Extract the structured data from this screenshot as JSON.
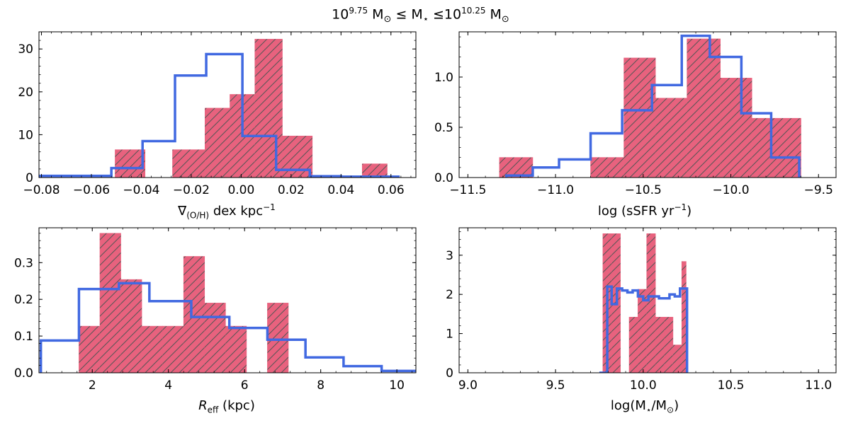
{
  "figure_title": "10^9.75 M⊙ ≤ M⋆ ≤10^10.25 M⊙",
  "title_parts": {
    "base1": "10",
    "exp1": "9.75",
    "mid": " M",
    "sun1": "⊙",
    "leq1": " ≤ M",
    "star": "⋆",
    "leq2": " ≤10",
    "exp2": "10.25",
    "tail": " M",
    "sun2": "⊙"
  },
  "colors": {
    "hist_fill": "#e8627e",
    "hist_edge": "#e8627e",
    "hatch": "#555555",
    "step": "#4169e1"
  },
  "chart_data": [
    {
      "type": "bar",
      "id": "gradient",
      "xlabel": "∇(O/H) dex kpc^−1",
      "xlabel_parts": {
        "main": "∇",
        "sub": "(O/H)",
        "rest": " dex kpc",
        "sup": "−1"
      },
      "xlim": [
        -0.081,
        0.07
      ],
      "ylim": [
        0,
        34
      ],
      "xticks": [
        -0.08,
        -0.06,
        -0.04,
        -0.02,
        0.0,
        0.02,
        0.04,
        0.06
      ],
      "xtick_labels": [
        "−0.08",
        "−0.06",
        "−0.04",
        "−0.02",
        "0.00",
        "0.02",
        "0.04",
        "0.06"
      ],
      "yticks": [
        0,
        10,
        20,
        30
      ],
      "ytick_labels": [
        "0",
        "10",
        "20",
        "30"
      ],
      "hist_edges": [
        -0.0505,
        -0.0385,
        -0.0275,
        -0.0145,
        -0.0045,
        0.0055,
        0.0165,
        0.0285,
        0.0485,
        0.0585
      ],
      "hist_values": [
        6.5,
        0,
        6.5,
        16.2,
        19.4,
        32.3,
        9.7,
        0,
        3.2
      ],
      "step_edges": [
        -0.081,
        -0.052,
        -0.0395,
        -0.0265,
        -0.014,
        0.0005,
        0.014,
        0.0275,
        0.04,
        0.063
      ],
      "step_values": [
        0.4,
        2.2,
        8.5,
        23.8,
        28.8,
        9.7,
        1.8,
        0.3,
        0.2
      ]
    },
    {
      "type": "bar",
      "id": "ssfr",
      "xlabel": "log (sSFR yr^−1)",
      "xlabel_parts": {
        "main": "log (sSFR yr",
        "sup": "−1",
        "rest": ")"
      },
      "xlim": [
        -11.55,
        -9.4
      ],
      "ylim": [
        0,
        1.45
      ],
      "xticks": [
        -11.5,
        -11.0,
        -10.5,
        -10.0,
        -9.5
      ],
      "xtick_labels": [
        "−11.5",
        "−11.0",
        "−10.5",
        "−10.0",
        "−9.5"
      ],
      "yticks": [
        0,
        0.5,
        1.0
      ],
      "ytick_labels": [
        "0.0",
        "0.5",
        "1.0"
      ],
      "hist_edges": [
        -11.32,
        -11.13,
        -10.98,
        -10.8,
        -10.61,
        -10.43,
        -10.25,
        -10.06,
        -9.88,
        -9.6
      ],
      "hist_values": [
        0.2,
        0,
        0,
        0.2,
        1.19,
        0.79,
        1.38,
        0.99,
        0.59
      ],
      "step_edges": [
        -11.28,
        -11.13,
        -10.98,
        -10.8,
        -10.62,
        -10.45,
        -10.28,
        -10.12,
        -9.94,
        -9.77,
        -9.61
      ],
      "step_values": [
        0.02,
        0.1,
        0.18,
        0.44,
        0.67,
        0.92,
        1.41,
        1.2,
        0.64,
        0.2
      ]
    },
    {
      "type": "bar",
      "id": "reff",
      "xlabel": "R_eff (kpc)",
      "xlabel_parts": {
        "main": "R",
        "sub": "eff",
        "rest": " (kpc)"
      },
      "xlim": [
        0.6,
        10.5
      ],
      "ylim": [
        0,
        0.395
      ],
      "xticks": [
        2,
        4,
        6,
        8,
        10
      ],
      "xtick_labels": [
        "2",
        "4",
        "6",
        "8",
        "10"
      ],
      "yticks": [
        0,
        0.1,
        0.2,
        0.3
      ],
      "ytick_labels": [
        "0.0",
        "0.1",
        "0.2",
        "0.3"
      ],
      "hist_edges": [
        1.65,
        2.2,
        2.75,
        3.3,
        3.85,
        4.4,
        4.95,
        5.5,
        6.05,
        6.6,
        7.15
      ],
      "hist_values": [
        0.127,
        0.38,
        0.254,
        0.127,
        0.127,
        0.317,
        0.19,
        0.127,
        0,
        0.19
      ],
      "step_edges": [
        0.65,
        1.65,
        2.7,
        3.5,
        4.6,
        5.6,
        6.6,
        7.6,
        8.6,
        9.6,
        10.6
      ],
      "step_values": [
        0.088,
        0.228,
        0.244,
        0.195,
        0.152,
        0.122,
        0.09,
        0.042,
        0.018,
        0.005
      ]
    },
    {
      "type": "bar",
      "id": "mass",
      "xlabel": "log(M⋆/M⊙)",
      "xlabel_parts": {
        "main": "log(M",
        "star": "⋆",
        "mid": "/M",
        "sun": "⊙",
        "rest": ")"
      },
      "xlim": [
        8.95,
        11.1
      ],
      "ylim": [
        0,
        3.7
      ],
      "xticks": [
        9.0,
        9.5,
        10.0,
        10.5,
        11.0
      ],
      "xtick_labels": [
        "9.0",
        "9.5",
        "10.0",
        "10.5",
        "11.0"
      ],
      "yticks": [
        0,
        1,
        2,
        3
      ],
      "ytick_labels": [
        "0",
        "1",
        "2",
        "3"
      ],
      "hist_edges": [
        9.77,
        9.82,
        9.87,
        9.92,
        9.97,
        10.02,
        10.07,
        10.12,
        10.17,
        10.22,
        10.245
      ],
      "hist_values": [
        3.55,
        3.55,
        0,
        1.42,
        2.13,
        3.55,
        1.42,
        1.42,
        0.71,
        2.84
      ],
      "step_edges": [
        9.75,
        9.795,
        9.82,
        9.85,
        9.88,
        9.91,
        9.94,
        9.97,
        10.0,
        10.03,
        10.06,
        10.09,
        10.12,
        10.15,
        10.18,
        10.21,
        10.25
      ],
      "step_values": [
        0.0,
        2.2,
        1.75,
        2.15,
        2.1,
        2.05,
        2.1,
        1.95,
        1.85,
        1.95,
        1.95,
        1.9,
        1.9,
        2.0,
        1.95,
        2.15
      ]
    }
  ]
}
